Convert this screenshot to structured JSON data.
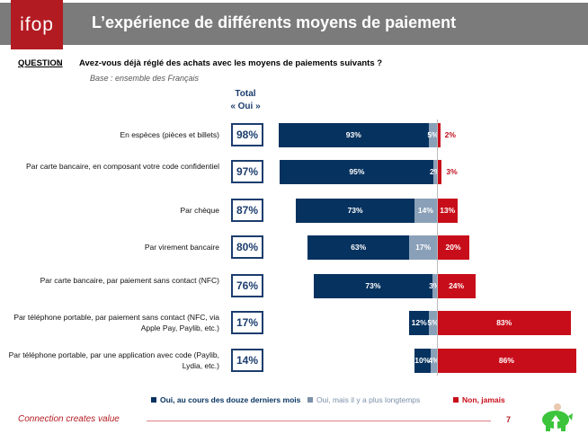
{
  "header": {
    "logo": "ifop",
    "title": "L’expérience de différents moyens de paiement"
  },
  "question": {
    "label": "QUESTION",
    "colon": ":",
    "text": "Avez-vous déjà réglé des achats avec les moyens de paiements suivants ?",
    "base": "Base : ensemble des Français"
  },
  "total_header": [
    "Total",
    "« Oui »"
  ],
  "colors": {
    "recent": "#06325f",
    "older": "#8aa0b8",
    "never": "#c80d1a"
  },
  "chart_data": {
    "type": "bar",
    "orientation": "horizontal-diverging",
    "categories": [
      "En espèces (pièces et billets)",
      "Par carte bancaire, en composant votre code confidentiel",
      "Par chèque",
      "Par virement bancaire",
      "Par carte bancaire, par paiement sans contact (NFC)",
      "Par téléphone portable, par paiement sans contact (NFC, via Apple Pay, Paylib, etc.)",
      "Par téléphone portable, par une application avec code (Paylib, Lydia, etc.)"
    ],
    "totals": [
      "98%",
      "97%",
      "87%",
      "80%",
      "76%",
      "17%",
      "14%"
    ],
    "series": [
      {
        "name": "Oui, au cours des douze derniers mois",
        "values": [
          93,
          95,
          73,
          63,
          73,
          12,
          10
        ]
      },
      {
        "name": "Oui, mais il y a plus longtemps",
        "values": [
          5,
          2,
          14,
          17,
          3,
          5,
          4
        ]
      },
      {
        "name": "Non, jamais",
        "values": [
          2,
          3,
          13,
          20,
          24,
          83,
          86
        ]
      }
    ],
    "legend_position": "bottom"
  },
  "footer": {
    "tagline": "Connection creates value",
    "page": "7"
  }
}
